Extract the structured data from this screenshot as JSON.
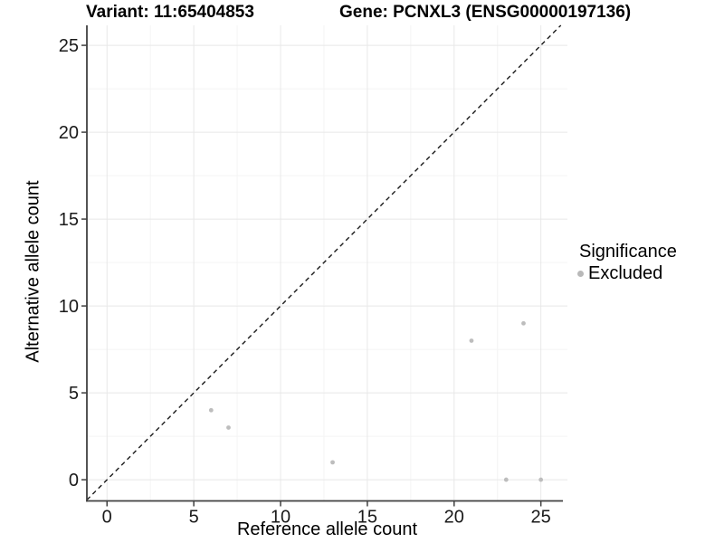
{
  "chart_data": {
    "type": "scatter",
    "title_left": "Variant: 11:65404853",
    "title_right": "Gene: PCNXL3 (ENSG00000197136)",
    "xlabel": "Reference allele count",
    "ylabel": "Alternative allele count",
    "xlim": [
      -1.16,
      26.53
    ],
    "ylim": [
      -1.22,
      26.15
    ],
    "x_ticks": [
      0,
      5,
      10,
      15,
      20,
      25
    ],
    "y_ticks": [
      0,
      5,
      10,
      15,
      20,
      25
    ],
    "x_minor": [
      2.5,
      7.5,
      12.5,
      17.5,
      22.5
    ],
    "y_minor": [
      2.5,
      7.5,
      12.5,
      17.5,
      22.5
    ],
    "grid": true,
    "legend_position": "right",
    "identity_line": {
      "slope": 1,
      "intercept": 0,
      "style": "dashed",
      "color": "#1a1a1a"
    },
    "series": [
      {
        "name": "Excluded",
        "color": "#bdbdbd",
        "points": [
          [
            6,
            4
          ],
          [
            7,
            3
          ],
          [
            13,
            1
          ],
          [
            21,
            8
          ],
          [
            23,
            0
          ],
          [
            24,
            9
          ],
          [
            25,
            0
          ]
        ]
      }
    ],
    "legend": {
      "title": "Significance",
      "items": [
        {
          "label": "Excluded",
          "color": "#bdbdbd"
        }
      ]
    },
    "colors": {
      "point": "#bdbdbd",
      "grid_major": "#e8e8e8",
      "grid_minor": "#f4f4f4",
      "axis_line": "#404040",
      "tick_text": "#1a1a1a"
    }
  }
}
